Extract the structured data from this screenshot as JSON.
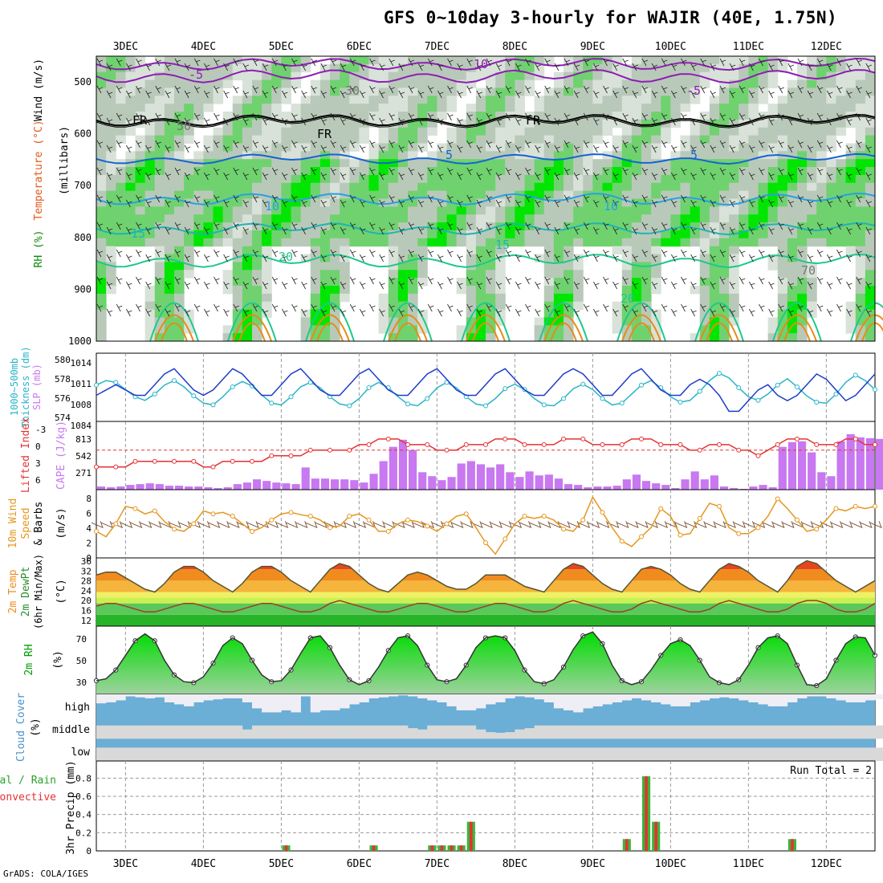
{
  "title": "GFS 0~10day 3-hourly for WAJIR (40E, 1.75N)",
  "credit": "GrADS: COLA/IGES",
  "dates": [
    "3DEC",
    "4DEC",
    "5DEC",
    "6DEC",
    "7DEC",
    "8DEC",
    "9DEC",
    "10DEC",
    "11DEC",
    "12DEC"
  ],
  "colors": {
    "rh_light": "#d9e2d9",
    "rh_mid": "#b9c9b9",
    "rh_green": "#6fd26f",
    "rh_bright": "#00e600",
    "rh_dark": "#009400",
    "temp_purple": "#8e1eb4",
    "temp_blue": "#1464d2",
    "temp_cyan": "#28a0e6",
    "temp_teal": "#1eb4b4",
    "temp_green": "#1ec88c",
    "temp_orange": "#e68c14",
    "slp": "#1e3cc8",
    "thickness": "#28b4c8",
    "cape": "#c878f0",
    "lifted": "#e63232",
    "wind_speed": "#e6961e",
    "barb": "#7a5032",
    "temp_fill": "#f08c1e",
    "temp_top": "#e6461e",
    "dew_line": "#a03c28",
    "rh2m_top": "#00dc00",
    "rh2m_base": "#a0d2a0",
    "cloud_blue": "#6baed6",
    "cloud_white": "#f0eef5",
    "cloud_grey": "#d9d9d9",
    "precip_total": "#3cb43c",
    "precip_conv": "#e63232"
  },
  "panels": {
    "upper": {
      "ylabel": "(millibars)",
      "legend": [
        "Wind (m/s)",
        "Temperature (°C)",
        "RH (%)"
      ],
      "levels": [
        "500",
        "600",
        "700",
        "800",
        "900",
        "1000"
      ],
      "contour_labels": [
        "-5",
        "10",
        "FR",
        "-5",
        "FR",
        "FR",
        "5",
        "5",
        "10",
        "10",
        "15",
        "15",
        "20",
        "20",
        "70",
        "50",
        "30"
      ]
    },
    "slp": {
      "ylabel_left": "1000~500mb",
      "ylabel_left2": "Thickness (dm)",
      "ylabel_right": "SLP (mb)",
      "ticks_thk": [
        "580",
        "578",
        "576",
        "574"
      ],
      "ticks_slp": [
        "1014",
        "1011",
        "1008",
        "1084"
      ]
    },
    "cape": {
      "ylabel_left": "Lifted Index",
      "ylabel_right": "CAPE (J/kg)",
      "ticks_li": [
        "-3",
        "0",
        "3",
        "6"
      ],
      "ticks_cape": [
        "813",
        "542",
        "271"
      ]
    },
    "wind": {
      "ylabel": [
        "10m Wind",
        "Speed",
        "& Barbs"
      ],
      "unit": "(m/s)",
      "ticks": [
        "8",
        "6",
        "4",
        "2",
        "0"
      ]
    },
    "temp": {
      "ylabel": [
        "2m Temp",
        "2m DewPt",
        "(6hr Min/Max)"
      ],
      "unit": "(°C)",
      "ticks": [
        "36",
        "32",
        "28",
        "24",
        "20",
        "16",
        "12"
      ]
    },
    "rh": {
      "ylabel": "2m RH",
      "unit": "(%)",
      "ticks": [
        "70",
        "50",
        "30"
      ]
    },
    "cloud": {
      "ylabel": "Cloud Cover",
      "unit": "(%)",
      "levels": [
        "high",
        "middle",
        "low"
      ]
    },
    "precip": {
      "ylabel_left": "Total / Rain",
      "ylabel_left2": "Convective",
      "ylabel_right": "3hr Precip (mm)",
      "run_total": "Run Total = 2",
      "ticks": [
        "0.8",
        "0.6",
        "0.4",
        "0.2",
        "0"
      ]
    }
  },
  "chart_data": {
    "type": "meteogram",
    "time_axis": {
      "start": "2 DEC 15Z",
      "step_hours": 3,
      "steps": 80
    },
    "slp_mb": [
      1009,
      1010,
      1011,
      1010,
      1009,
      1009,
      1011,
      1013,
      1014,
      1012,
      1010,
      1009,
      1010,
      1012,
      1014,
      1013,
      1011,
      1009,
      1009,
      1011,
      1013,
      1014,
      1012,
      1010,
      1009,
      1009,
      1011,
      1013,
      1014,
      1012,
      1010,
      1009,
      1009,
      1011,
      1013,
      1014,
      1012,
      1010,
      1009,
      1009,
      1011,
      1013,
      1014,
      1012,
      1010,
      1009,
      1009,
      1011,
      1013,
      1014,
      1013,
      1011,
      1009,
      1009,
      1011,
      1013,
      1014,
      1012,
      1010,
      1009,
      1009,
      1011,
      1012,
      1011,
      1009,
      1006,
      1006,
      1008,
      1010,
      1011,
      1009,
      1008,
      1009,
      1011,
      1013,
      1012,
      1010,
      1008,
      1009,
      1011,
      1013
    ],
    "thickness_dm": [
      577.5,
      578.0,
      577.8,
      577.0,
      576.2,
      575.8,
      576.5,
      577.5,
      578.0,
      577.3,
      576.3,
      575.5,
      575.3,
      576.2,
      577.3,
      577.9,
      577.4,
      576.4,
      575.5,
      575.3,
      576.2,
      577.3,
      577.8,
      577.2,
      576.2,
      575.4,
      575.2,
      576.0,
      577.2,
      577.8,
      577.2,
      576.2,
      575.4,
      575.2,
      576.0,
      577.2,
      577.8,
      577.2,
      576.2,
      575.4,
      575.2,
      576.0,
      577.1,
      577.6,
      577.0,
      576.0,
      575.3,
      575.2,
      576.0,
      577.1,
      577.6,
      577.0,
      576.0,
      575.3,
      575.5,
      576.5,
      577.5,
      578.0,
      577.2,
      576.2,
      575.6,
      575.8,
      576.8,
      578.0,
      578.8,
      578.3,
      577.2,
      576.2,
      575.8,
      576.5,
      577.5,
      578.2,
      577.3,
      576.3,
      575.6,
      575.5,
      576.5,
      577.8,
      578.6,
      578.0,
      577.0
    ],
    "lifted_index": [
      3,
      3,
      3,
      3,
      2,
      2,
      2,
      2,
      2,
      2,
      2,
      3,
      3,
      2,
      2,
      2,
      2,
      2,
      1,
      1,
      1,
      1,
      0,
      0,
      0,
      0,
      0,
      -1,
      -1,
      -2,
      -2,
      -2,
      -1,
      -1,
      -1,
      0,
      0,
      0,
      -1,
      -1,
      -1,
      -2,
      -2,
      -2,
      -1,
      -1,
      -1,
      -1,
      -2,
      -2,
      -2,
      -1,
      -1,
      -1,
      -1,
      -2,
      -2,
      -2,
      -1,
      -1,
      -1,
      0,
      0,
      -1,
      -1,
      -1,
      0,
      0,
      1,
      0,
      -1,
      -2,
      -2,
      -2,
      -1,
      -1,
      -1,
      -2,
      -2,
      -1,
      -1
    ],
    "cape_jkg": [
      40,
      30,
      40,
      60,
      70,
      80,
      70,
      50,
      50,
      40,
      40,
      30,
      20,
      30,
      70,
      90,
      130,
      110,
      90,
      80,
      70,
      280,
      140,
      140,
      130,
      130,
      120,
      90,
      200,
      360,
      540,
      630,
      500,
      220,
      170,
      120,
      160,
      330,
      360,
      320,
      280,
      320,
      220,
      160,
      230,
      180,
      190,
      140,
      70,
      60,
      30,
      40,
      40,
      50,
      130,
      190,
      110,
      80,
      60,
      20,
      130,
      230,
      130,
      180,
      40,
      20,
      10,
      40,
      60,
      30,
      540,
      600,
      610,
      470,
      220,
      170,
      610,
      700,
      660,
      650,
      640
    ],
    "wind_speed_ms": [
      3.5,
      2.8,
      4.5,
      6.8,
      6.5,
      5.8,
      6.2,
      4.8,
      3.8,
      3.5,
      4.5,
      6.2,
      5.8,
      6.0,
      5.5,
      4.5,
      3.5,
      4.0,
      5.0,
      5.8,
      6.0,
      5.7,
      5.5,
      5.0,
      4.0,
      4.2,
      5.5,
      5.8,
      5.0,
      3.5,
      3.5,
      4.5,
      5.0,
      4.8,
      4.2,
      3.5,
      4.5,
      5.5,
      5.8,
      4.0,
      2.0,
      0.5,
      2.5,
      4.5,
      5.5,
      5.2,
      5.5,
      5.0,
      3.8,
      3.5,
      5.0,
      8.0,
      6.0,
      4.0,
      2.2,
      1.5,
      2.8,
      4.0,
      6.5,
      5.5,
      3.0,
      3.2,
      5.2,
      7.2,
      6.8,
      4.0,
      3.2,
      3.2,
      4.0,
      5.5,
      7.8,
      6.5,
      5.0,
      3.5,
      3.8,
      5.0,
      6.5,
      6.2,
      6.8,
      6.5,
      6.8
    ],
    "temp_2m_c": [
      30,
      31,
      31,
      29,
      27,
      25,
      24,
      27,
      31,
      33,
      33,
      31,
      28,
      26,
      24,
      27,
      31,
      33,
      33,
      31,
      28,
      26,
      24,
      28,
      32,
      34,
      33,
      30,
      27,
      25,
      24,
      27,
      30,
      31,
      30,
      28,
      26,
      25,
      25,
      27,
      30,
      30,
      30,
      28,
      26,
      25,
      24,
      28,
      32,
      34,
      33,
      30,
      27,
      25,
      24,
      28,
      32,
      33,
      32,
      30,
      27,
      25,
      24,
      28,
      32,
      34,
      33,
      31,
      28,
      26,
      24,
      28,
      33,
      35,
      34,
      31,
      28,
      26,
      24,
      26,
      28
    ],
    "dewpoint_2m_c": [
      19,
      20,
      20,
      19,
      18,
      17,
      17,
      18,
      19,
      20,
      20,
      19,
      18,
      17,
      17,
      18,
      19,
      20,
      20,
      19,
      18,
      17,
      17,
      18,
      20,
      21,
      20,
      19,
      18,
      17,
      17,
      18,
      19,
      20,
      20,
      19,
      18,
      17,
      17,
      18,
      19,
      20,
      20,
      19,
      18,
      17,
      17,
      18,
      20,
      21,
      20,
      19,
      18,
      17,
      17,
      18,
      20,
      21,
      20,
      19,
      18,
      17,
      17,
      18,
      20,
      21,
      20,
      19,
      18,
      17,
      17,
      18,
      20,
      21,
      21,
      20,
      18,
      17,
      17,
      18,
      20
    ],
    "rh_2m_pct": [
      34,
      36,
      45,
      60,
      75,
      82,
      75,
      55,
      40,
      33,
      32,
      38,
      52,
      70,
      78,
      72,
      55,
      40,
      33,
      34,
      45,
      62,
      78,
      80,
      68,
      50,
      35,
      30,
      34,
      48,
      65,
      78,
      80,
      70,
      50,
      35,
      33,
      36,
      50,
      68,
      78,
      80,
      78,
      65,
      45,
      33,
      31,
      35,
      48,
      66,
      80,
      84,
      72,
      50,
      34,
      30,
      33,
      45,
      60,
      72,
      76,
      70,
      55,
      38,
      32,
      30,
      35,
      50,
      68,
      78,
      80,
      72,
      50,
      30,
      29,
      36,
      55,
      72,
      79,
      78,
      60
    ],
    "cloud_high_pct": [
      55,
      60,
      70,
      90,
      85,
      80,
      85,
      60,
      50,
      40,
      60,
      70,
      75,
      80,
      80,
      60,
      30,
      10,
      10,
      20,
      10,
      90,
      10,
      20,
      20,
      30,
      50,
      60,
      80,
      85,
      90,
      95,
      90,
      80,
      70,
      60,
      40,
      20,
      20,
      30,
      50,
      60,
      80,
      90,
      85,
      75,
      60,
      30,
      20,
      10,
      30,
      40,
      50,
      60,
      70,
      80,
      70,
      60,
      50,
      40,
      40,
      60,
      70,
      80,
      85,
      80,
      70,
      60,
      50,
      40,
      40,
      60,
      80,
      90,
      90,
      80,
      70,
      60,
      60,
      70,
      75
    ],
    "cloud_mid_pct": [
      0,
      0,
      0,
      0,
      0,
      0,
      0,
      0,
      0,
      0,
      0,
      0,
      0,
      0,
      0,
      30,
      0,
      0,
      0,
      0,
      0,
      0,
      0,
      0,
      0,
      0,
      0,
      0,
      0,
      0,
      0,
      0,
      20,
      30,
      0,
      0,
      0,
      0,
      0,
      30,
      50,
      55,
      50,
      30,
      20,
      0,
      0,
      0,
      0,
      0,
      0,
      0,
      0,
      0,
      0,
      0,
      0,
      0,
      0,
      0,
      0,
      0,
      0,
      0,
      0,
      0,
      0,
      0,
      0,
      0,
      0,
      0,
      0,
      0,
      0,
      0,
      0,
      0,
      0,
      0,
      0
    ],
    "cloud_low_pct": [
      0,
      0,
      0,
      0,
      0,
      0,
      0,
      0,
      0,
      0,
      0,
      0,
      0,
      0,
      0,
      0,
      0,
      0,
      0,
      0,
      0,
      0,
      0,
      0,
      0,
      0,
      0,
      0,
      0,
      0,
      0,
      0,
      0,
      0,
      0,
      0,
      0,
      0,
      0,
      0,
      0,
      0,
      0,
      0,
      0,
      0,
      0,
      0,
      0,
      0,
      0,
      0,
      0,
      0,
      0,
      0,
      0,
      0,
      0,
      0,
      0,
      0,
      0,
      0,
      0,
      0,
      0,
      0,
      0,
      0,
      0,
      0,
      0,
      0,
      0,
      0,
      0,
      0,
      0,
      0,
      0
    ],
    "precip_3hr_mm": [
      0,
      0,
      0,
      0,
      0,
      0,
      0,
      0,
      0,
      0,
      0,
      0,
      0,
      0,
      0,
      0,
      0,
      0,
      0,
      0.06,
      0,
      0,
      0,
      0,
      0,
      0,
      0,
      0,
      0.06,
      0,
      0,
      0,
      0,
      0,
      0.06,
      0.06,
      0.06,
      0.06,
      0.32,
      0,
      0,
      0,
      0,
      0,
      0,
      0,
      0,
      0,
      0,
      0,
      0,
      0,
      0,
      0,
      0.13,
      0,
      0.82,
      0.32,
      0,
      0,
      0,
      0,
      0,
      0,
      0,
      0,
      0,
      0,
      0,
      0,
      0,
      0.13,
      0,
      0,
      0,
      0,
      0,
      0,
      0,
      0,
      0
    ],
    "upper_temperature_contours_c": [
      -5,
      0,
      5,
      10,
      15,
      20,
      25,
      30
    ],
    "upper_rh_contours_pct": [
      30,
      50,
      70,
      90
    ]
  }
}
